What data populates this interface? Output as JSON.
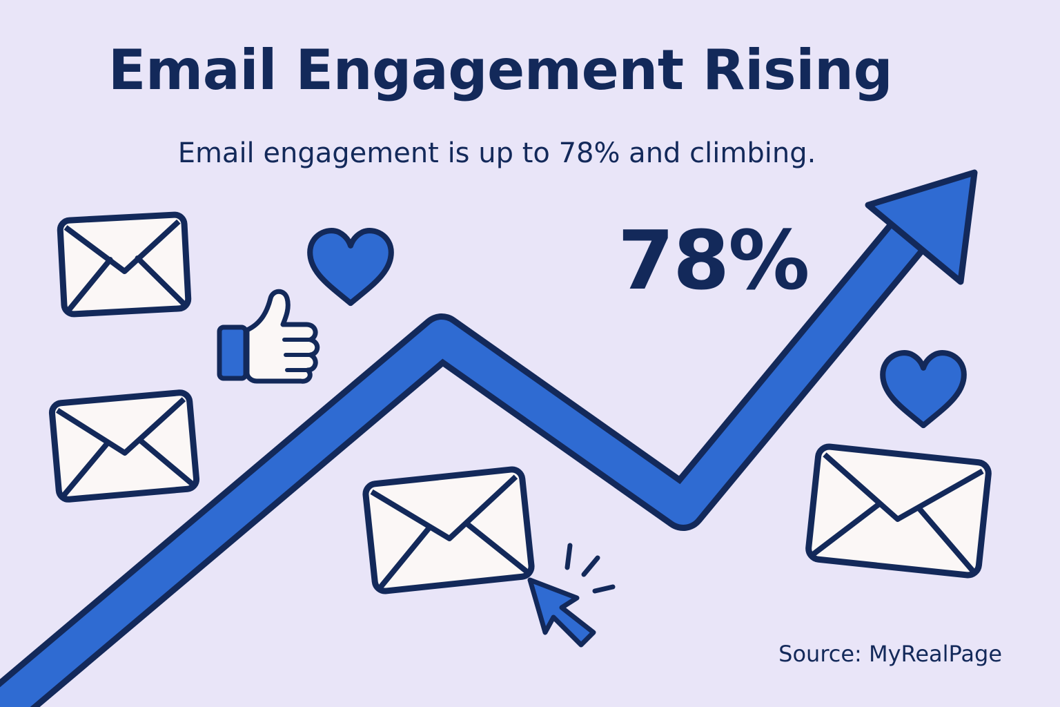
{
  "header": {
    "title": "Email Engagement Rising",
    "subtitle": "Email engagement is up to 78% and climbing."
  },
  "stat": {
    "value": "78%",
    "engagement_fraction": 0.78
  },
  "footer": {
    "source": "Source: MyRealPage"
  },
  "colors": {
    "background": "#E9E5F8",
    "text": "#13295A",
    "accent": "#2F6BD2",
    "outline": "#13295A",
    "envelope_fill": "#FBF7F6"
  },
  "icons": [
    "envelope-icon",
    "heart-icon",
    "thumbs-up-icon",
    "cursor-click-icon",
    "trend-arrow"
  ]
}
